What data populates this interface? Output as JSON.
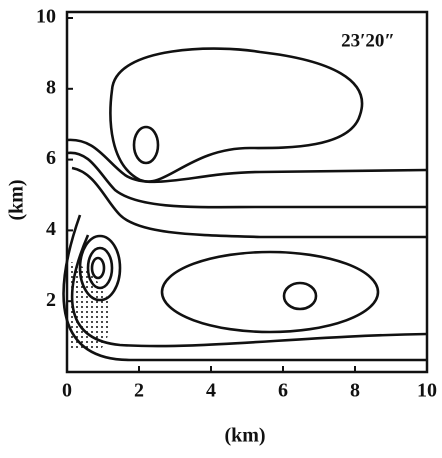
{
  "chart_data": {
    "type": "contour",
    "annotation": "23′20″",
    "x_label": "(km)",
    "y_label": "(km)",
    "xlim": [
      0,
      10
    ],
    "ylim": [
      0,
      10
    ],
    "xticks": [
      0,
      2,
      4,
      6,
      8,
      10
    ],
    "yticks": [
      2,
      4,
      6,
      8,
      10
    ]
  }
}
